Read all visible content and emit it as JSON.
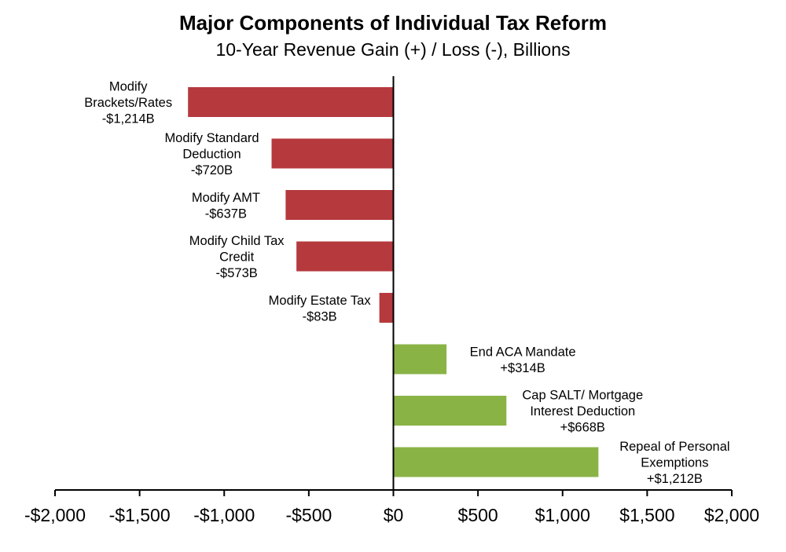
{
  "chart_data": {
    "type": "bar",
    "orientation": "horizontal",
    "title": "Major Components of Individual Tax Reform",
    "subtitle": "10-Year Revenue Gain (+) / Loss (-), Billions",
    "xlim": [
      -2000,
      2000
    ],
    "x_ticks": [
      -2000,
      -1500,
      -1000,
      -500,
      0,
      500,
      1000,
      1500,
      2000
    ],
    "x_tick_labels": [
      "-$2,000",
      "-$1,500",
      "-$1,000",
      "-$500",
      "$0",
      "$500",
      "$1,000",
      "$1,500",
      "$2,000"
    ],
    "grid": false,
    "legend": "none",
    "colors": {
      "loss": "#b5393d",
      "gain": "#8ab346"
    },
    "bars": [
      {
        "label_lines": [
          "Modify",
          "Brackets/Rates",
          "-$1,214B"
        ],
        "value": -1214
      },
      {
        "label_lines": [
          "Modify Standard",
          "Deduction",
          "-$720B"
        ],
        "value": -720
      },
      {
        "label_lines": [
          "Modify AMT",
          "-$637B"
        ],
        "value": -637
      },
      {
        "label_lines": [
          "Modify Child Tax",
          "Credit",
          "-$573B"
        ],
        "value": -573
      },
      {
        "label_lines": [
          "Modify Estate Tax",
          "-$83B"
        ],
        "value": -83
      },
      {
        "label_lines": [
          "End ACA Mandate",
          "+$314B"
        ],
        "value": 314
      },
      {
        "label_lines": [
          "Cap SALT/ Mortgage",
          "Interest Deduction",
          "+$668B"
        ],
        "value": 668
      },
      {
        "label_lines": [
          "Repeal of Personal",
          "Exemptions",
          "+$1,212B"
        ],
        "value": 1212
      }
    ]
  }
}
